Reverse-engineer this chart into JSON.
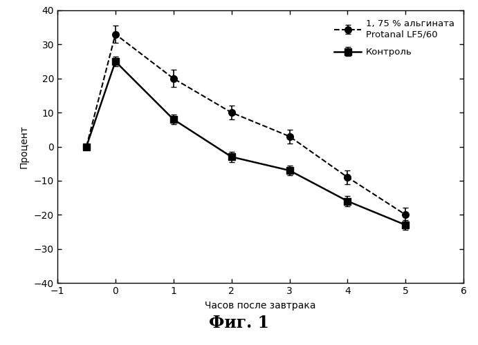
{
  "alginate_x": [
    -0.5,
    0,
    1,
    2,
    3,
    4,
    5
  ],
  "alginate_y": [
    0,
    33,
    20,
    10,
    3,
    -9,
    -20
  ],
  "alginate_yerr": [
    0,
    2.5,
    2.5,
    2,
    2,
    2,
    2
  ],
  "control_x": [
    -0.5,
    0,
    1,
    2,
    3,
    4,
    5
  ],
  "control_y": [
    0,
    25,
    8,
    -3,
    -7,
    -16,
    -23
  ],
  "control_yerr": [
    0,
    1.5,
    1.5,
    1.5,
    1.5,
    1.5,
    1.5
  ],
  "alginate_label": "1, 75 % альгината\nProtanal LF5/60",
  "control_label": "Контроль",
  "xlabel": "Часов после завтрака",
  "ylabel": "Процент",
  "title": "Фиг. 1",
  "xlim": [
    -1,
    6
  ],
  "ylim": [
    -40,
    40
  ],
  "xticks": [
    -1,
    0,
    1,
    2,
    3,
    4,
    5,
    6
  ],
  "yticks": [
    -40,
    -30,
    -20,
    -10,
    0,
    10,
    20,
    30,
    40
  ],
  "line_color": "#000000",
  "bg_color": "#ffffff"
}
